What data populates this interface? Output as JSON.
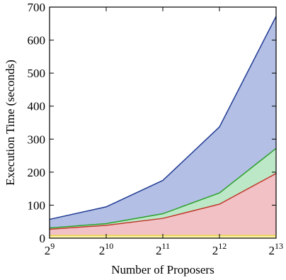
{
  "chart_data": {
    "type": "area",
    "stacked": false,
    "xlabel": "Number of Proposers",
    "ylabel": "Execution Time (seconds)",
    "x_scale": "log2",
    "x": [
      512,
      1024,
      2048,
      4096,
      8192
    ],
    "x_tick_labels": [
      {
        "base": "2",
        "exp": "9"
      },
      {
        "base": "2",
        "exp": "10"
      },
      {
        "base": "2",
        "exp": "11"
      },
      {
        "base": "2",
        "exp": "12"
      },
      {
        "base": "2",
        "exp": "13"
      }
    ],
    "ylim": [
      0,
      700
    ],
    "y_ticks": [
      0,
      100,
      200,
      300,
      400,
      500,
      600,
      700
    ],
    "grid": false,
    "series": [
      {
        "values": [
          57,
          95,
          175,
          337,
          672
        ],
        "line_color": "#1f3a93",
        "fill_color": "#b3bfe4"
      },
      {
        "values": [
          31,
          44,
          74,
          137,
          272
        ],
        "line_color": "#2ca02c",
        "fill_color": "#bde8c8"
      },
      {
        "values": [
          27,
          39,
          60,
          103,
          196
        ],
        "line_color": "#c0392b",
        "fill_color": "#f2c1c6"
      },
      {
        "values": [
          8,
          8,
          8,
          8,
          8
        ],
        "line_color": "#e8d84a",
        "fill_color": "#fbf3a8"
      }
    ]
  }
}
